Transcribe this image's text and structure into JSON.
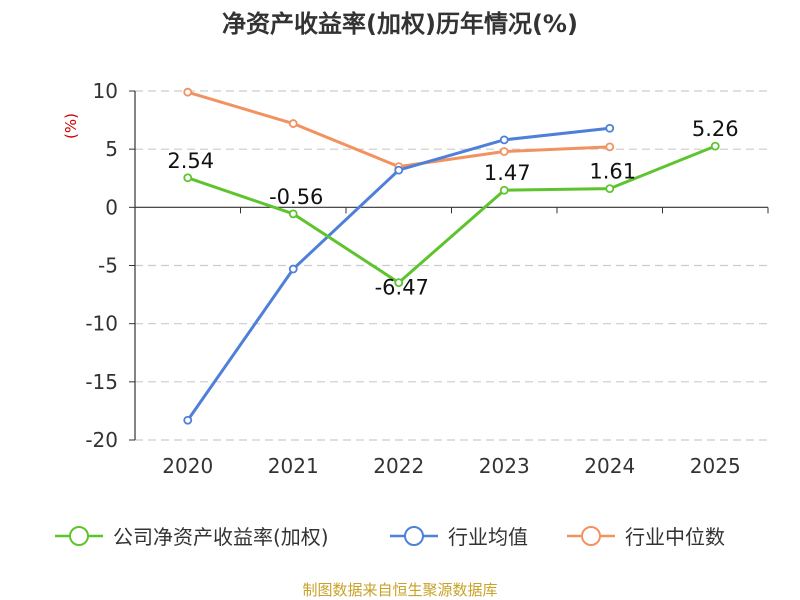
{
  "chart_data": {
    "type": "line",
    "title": "净资产收益率(加权)历年情况(%)",
    "ylabel": "(%)",
    "xlabel": "",
    "categories": [
      "2020",
      "2021",
      "2022",
      "2023",
      "2024",
      "2025"
    ],
    "ylim": [
      -20,
      10
    ],
    "yticks": [
      10,
      5,
      0,
      -5,
      -10,
      -15,
      -20
    ],
    "grid": true,
    "legend_position": "bottom",
    "series": [
      {
        "name": "公司净资产收益率(加权)",
        "color": "#5ec42e",
        "values": [
          2.54,
          -0.56,
          -6.47,
          1.47,
          1.61,
          5.26
        ],
        "labels": [
          "2.54",
          "-0.56",
          "-6.47",
          "1.47",
          "1.61",
          "5.26"
        ]
      },
      {
        "name": "行业均值",
        "color": "#4f80d9",
        "values": [
          -18.3,
          -5.3,
          3.2,
          5.8,
          6.8,
          null
        ]
      },
      {
        "name": "行业中位数",
        "color": "#f29260",
        "values": [
          9.9,
          7.2,
          3.5,
          4.8,
          5.2,
          null
        ]
      }
    ]
  },
  "footer": {
    "source": "制图数据来自恒生聚源数据库",
    "source_color": "#c9a227"
  },
  "colors": {
    "unit_label": "#cc0000",
    "grid": "#cccccc",
    "axis": "#333333"
  }
}
